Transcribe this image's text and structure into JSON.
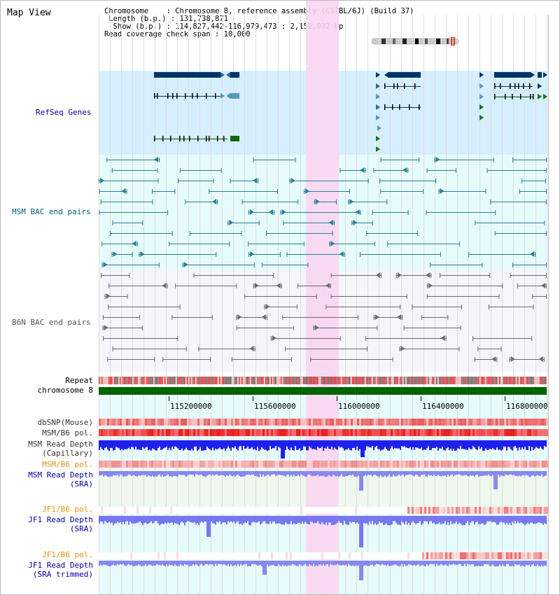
{
  "title": "Map View",
  "info": {
    "chromosome": "Chromosome    : Chromosome 8, reference assembly (C57BL/6J) (Build 37)",
    "length": " Length (b.p.) : 131,738,871",
    "show": "  Show (b.p.) : 114,827,442-116,979,473 : 2,152,032 bp",
    "coverage": "Read coverage check span : 10,000"
  },
  "tracks": {
    "refseq": "RefSeq Genes",
    "msm_bac": "MSM BAC end pairs",
    "b6n_bac": "B6N BAC end pairs",
    "repeat": "Repeat",
    "chrom": "chromosome 8",
    "dbsnp": "dbSNP(Mouse)",
    "msm_b6_pol_1": "MSM/B6 pol.",
    "msm_rd_cap_1": "MSM Read Depth",
    "msm_rd_cap_2": "(Capillary)",
    "msm_b6_pol_2": "MSM/B6 pol.",
    "msm_rd_sra_1": "MSM Read Depth",
    "msm_rd_sra_2": "(SRA)",
    "jf1_b6_pol_1": "JF1/B6 pol.",
    "jf1_rd_sra_1": "JF1 Read Depth",
    "jf1_rd_sra_2": "(SRA)",
    "jf1_b6_pol_2": "JF1/B6 pol.",
    "jf1_rd_tr_1": "JF1 Read Depth",
    "jf1_rd_tr_2": "(SRA trimmed)"
  },
  "axis": {
    "ticks": [
      "115200000",
      "115600000",
      "116000000",
      "116400000",
      "116800000"
    ]
  },
  "colors": {
    "highlight": "#f9d6f1",
    "refseq_bg": "#d6efff",
    "msm_label": "#00607a",
    "label_blue": "#0000a0",
    "label_orange": "#e8900c",
    "gene_dark": "#003366",
    "chrom_bar": "#006400"
  }
}
